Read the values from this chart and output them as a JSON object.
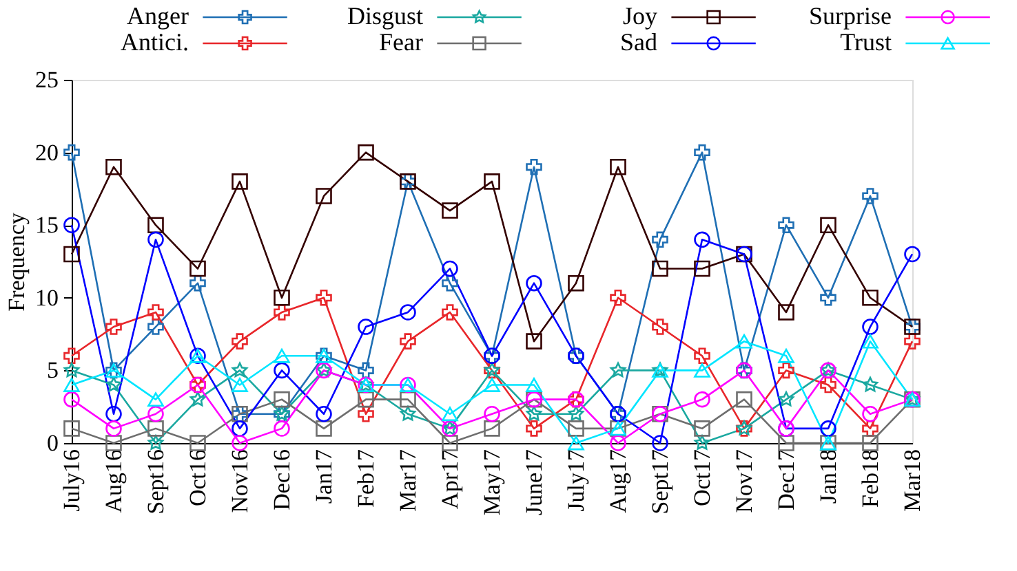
{
  "chart_data": {
    "type": "line",
    "ylabel": "Frequency",
    "categories": [
      "July16",
      "Aug16",
      "Sept16",
      "Oct16",
      "Nov16",
      "Dec16",
      "Jan17",
      "Feb17",
      "Mar17",
      "Apr17",
      "May17",
      "June17",
      "July17",
      "Aug17",
      "Sept17",
      "Oct17",
      "Nov17",
      "Dec17",
      "Jan18",
      "Feb18",
      "Mar18"
    ],
    "ylim": [
      0,
      25
    ],
    "yticks": [
      0,
      5,
      10,
      15,
      20,
      25
    ],
    "legend": "top",
    "line_style": "solid",
    "series": [
      {
        "name": "Anger",
        "color": "#1f6fb4",
        "marker": "cross",
        "values": [
          20,
          5,
          8,
          11,
          2,
          2,
          6,
          5,
          18,
          11,
          6,
          19,
          6,
          2,
          14,
          20,
          5,
          15,
          10,
          17,
          8
        ]
      },
      {
        "name": "Antici.",
        "color": "#e8262a",
        "marker": "cross",
        "values": [
          6,
          8,
          9,
          4,
          7,
          9,
          10,
          2,
          7,
          9,
          5,
          1,
          3,
          10,
          8,
          6,
          1,
          5,
          4,
          1,
          7
        ]
      },
      {
        "name": "Disgust",
        "color": "#1aa8a0",
        "marker": "star",
        "values": [
          5,
          4,
          0,
          3,
          5,
          2,
          5,
          4,
          2,
          1,
          5,
          2,
          2,
          5,
          5,
          0,
          1,
          3,
          5,
          4,
          3
        ]
      },
      {
        "name": "Fear",
        "color": "#6e6e6e",
        "marker": "square",
        "values": [
          1,
          0,
          1,
          0,
          2,
          3,
          1,
          3,
          3,
          0,
          1,
          3,
          1,
          1,
          2,
          1,
          3,
          0,
          0,
          0,
          3
        ]
      },
      {
        "name": "Joy",
        "color": "#330000",
        "marker": "square",
        "values": [
          13,
          19,
          15,
          12,
          18,
          10,
          17,
          20,
          18,
          16,
          18,
          7,
          11,
          19,
          12,
          12,
          13,
          9,
          15,
          10,
          8
        ]
      },
      {
        "name": "Sad",
        "color": "#0000ff",
        "marker": "circle",
        "values": [
          15,
          2,
          14,
          6,
          1,
          5,
          2,
          8,
          9,
          12,
          6,
          11,
          6,
          2,
          0,
          14,
          13,
          1,
          1,
          8,
          13
        ]
      },
      {
        "name": "Surprise",
        "color": "#ff00ff",
        "marker": "circle",
        "values": [
          3,
          1,
          2,
          4,
          0,
          1,
          5,
          4,
          4,
          1,
          2,
          3,
          3,
          0,
          2,
          3,
          5,
          1,
          5,
          2,
          3
        ]
      },
      {
        "name": "Trust",
        "color": "#00e5ff",
        "marker": "triangle",
        "values": [
          4,
          5,
          3,
          6,
          4,
          6,
          6,
          4,
          4,
          2,
          4,
          4,
          0,
          1,
          5,
          5,
          7,
          6,
          0,
          7,
          3
        ]
      }
    ]
  }
}
